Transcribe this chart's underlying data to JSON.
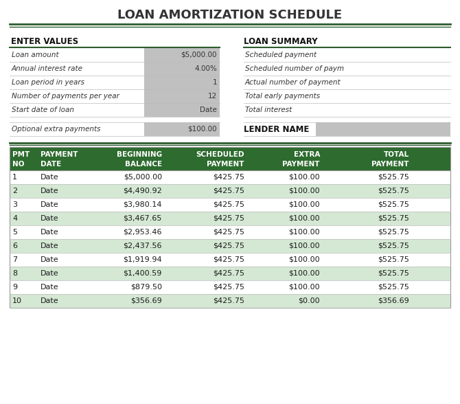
{
  "title": "LOAN AMORTIZATION SCHEDULE",
  "title_color": "#333333",
  "title_fontsize": 13,
  "bg_color": "#ffffff",
  "separator_color": "#2d5c2e",
  "enter_values_label": "ENTER VALUES",
  "enter_values_rows": [
    [
      "Loan amount",
      "$5,000.00"
    ],
    [
      "Annual interest rate",
      "4.00%"
    ],
    [
      "Loan period in years",
      "1"
    ],
    [
      "Number of payments per year",
      "12"
    ],
    [
      "Start date of loan",
      "Date"
    ]
  ],
  "extra_payment_row": [
    "Optional extra payments",
    "$100.00"
  ],
  "loan_summary_label": "LOAN SUMMARY",
  "loan_summary_rows": [
    "Scheduled payment",
    "Scheduled number of paym",
    "Actual number of payment",
    "Total early payments",
    "Total interest"
  ],
  "lender_name_label": "LENDER NAME",
  "table_header_bg": "#2d6b2e",
  "table_header_color": "#ffffff",
  "table_alt_row_bg": "#d4e8d4",
  "table_row_bg": "#ffffff",
  "table_text_color": "#1a1a1a",
  "input_value_bg": "#c0c0c0",
  "section_header_color": "#111111",
  "italic_text_color": "#333333",
  "line_color": "#bbbbbb",
  "table_headers": [
    [
      "PMT",
      "NO"
    ],
    [
      "PAYMENT",
      "DATE"
    ],
    [
      "BEGINNING",
      "BALANCE"
    ],
    [
      "SCHEDULED",
      "PAYMENT"
    ],
    [
      "EXTRA",
      "PAYMENT"
    ],
    [
      "TOTAL",
      "PAYMENT"
    ]
  ],
  "table_rows": [
    [
      "1",
      "Date",
      "$5,000.00",
      "$425.75",
      "$100.00",
      "$525.75"
    ],
    [
      "2",
      "Date",
      "$4,490.92",
      "$425.75",
      "$100.00",
      "$525.75"
    ],
    [
      "3",
      "Date",
      "$3,980.14",
      "$425.75",
      "$100.00",
      "$525.75"
    ],
    [
      "4",
      "Date",
      "$3,467.65",
      "$425.75",
      "$100.00",
      "$525.75"
    ],
    [
      "5",
      "Date",
      "$2,953.46",
      "$425.75",
      "$100.00",
      "$525.75"
    ],
    [
      "6",
      "Date",
      "$2,437.56",
      "$425.75",
      "$100.00",
      "$525.75"
    ],
    [
      "7",
      "Date",
      "$1,919.94",
      "$425.75",
      "$100.00",
      "$525.75"
    ],
    [
      "8",
      "Date",
      "$1,400.59",
      "$425.75",
      "$100.00",
      "$525.75"
    ],
    [
      "9",
      "Date",
      "$879.50",
      "$425.75",
      "$100.00",
      "$525.75"
    ],
    [
      "10",
      "Date",
      "$356.69",
      "$425.75",
      "$0.00",
      "$356.69"
    ]
  ],
  "col_lefts": [
    14,
    55,
    120,
    240,
    360,
    470
  ],
  "col_rights": [
    55,
    120,
    240,
    360,
    470,
    600
  ],
  "col_align": [
    "left",
    "left",
    "right",
    "right",
    "right",
    "right"
  ]
}
